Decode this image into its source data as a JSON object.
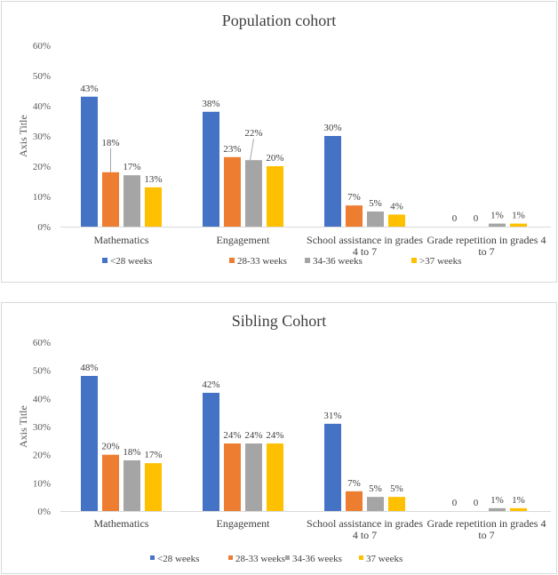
{
  "colors": [
    "#4472c4",
    "#ed7d31",
    "#a5a5a5",
    "#ffc000"
  ],
  "chart_data": [
    {
      "type": "bar",
      "title": "Population cohort",
      "ylabel": "Axis Title",
      "ylim": [
        0,
        0.6
      ],
      "yticks": [
        "0%",
        "10%",
        "20%",
        "30%",
        "40%",
        "50%",
        "60%"
      ],
      "grid": false,
      "legend": "bottom",
      "categories": [
        [
          "Mathematics"
        ],
        [
          "Engagement"
        ],
        [
          "School assistance in grades",
          "4 to 7"
        ],
        [
          "Grade repetition in grades 4",
          "to 7"
        ]
      ],
      "series": [
        {
          "name": "<28 weeks",
          "values": [
            0.43,
            0.38,
            0.3,
            0
          ],
          "labels": [
            "43%",
            "38%",
            "30%",
            "0"
          ]
        },
        {
          "name": "28-33 weeks",
          "values": [
            0.18,
            0.23,
            0.07,
            0
          ],
          "labels": [
            "18%",
            "23%",
            "7%",
            "0"
          ]
        },
        {
          "name": "34-36 weeks",
          "values": [
            0.17,
            0.22,
            0.05,
            0.01
          ],
          "labels": [
            "17%",
            "22%",
            "5%",
            "1%"
          ]
        },
        {
          "name": ">37 weeks",
          "values": [
            0.13,
            0.2,
            0.04,
            0.01
          ],
          "labels": [
            "13%",
            "20%",
            "4%",
            "1%"
          ]
        }
      ]
    },
    {
      "type": "bar",
      "title": "Sibling Cohort",
      "ylabel": "Axis Title",
      "ylim": [
        0,
        0.6
      ],
      "yticks": [
        "0%",
        "10%",
        "20%",
        "30%",
        "40%",
        "50%",
        "60%"
      ],
      "grid": false,
      "legend": "bottom",
      "categories": [
        [
          "Mathematics"
        ],
        [
          "Engagement"
        ],
        [
          "School assistance in grades",
          "4 to 7"
        ],
        [
          "Grade repetition in grades 4",
          "to 7"
        ]
      ],
      "series": [
        {
          "name": "<28 weeks",
          "values": [
            0.48,
            0.42,
            0.31,
            0
          ],
          "labels": [
            "48%",
            "42%",
            "31%",
            "0"
          ]
        },
        {
          "name": "28-33 weeks",
          "values": [
            0.2,
            0.24,
            0.07,
            0
          ],
          "labels": [
            "20%",
            "24%",
            "7%",
            "0"
          ]
        },
        {
          "name": "34-36 weeks",
          "values": [
            0.18,
            0.24,
            0.05,
            0.01
          ],
          "labels": [
            "18%",
            "24%",
            "5%",
            "1%"
          ]
        },
        {
          "name": "37 weeks",
          "values": [
            0.17,
            0.24,
            0.05,
            0.01
          ],
          "labels": [
            "17%",
            "24%",
            "5%",
            "1%"
          ]
        }
      ]
    }
  ]
}
